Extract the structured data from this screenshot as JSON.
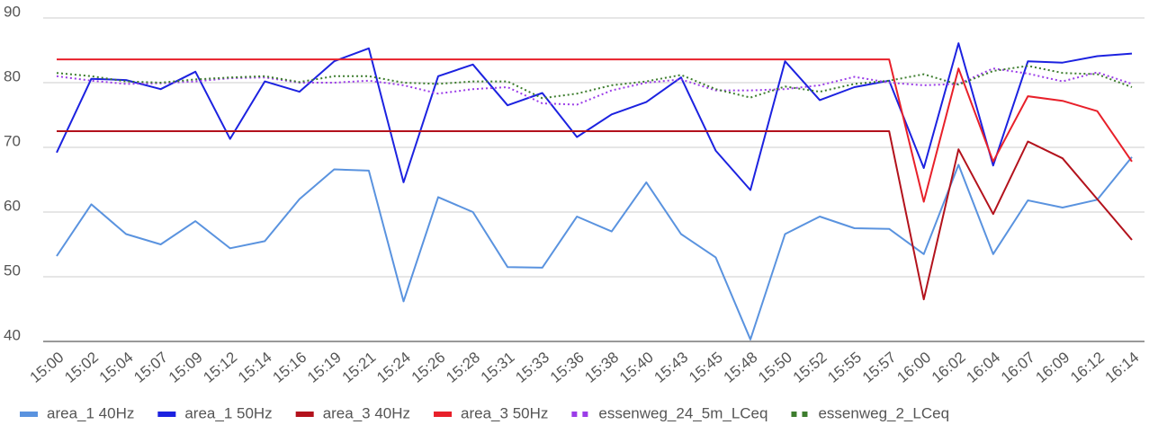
{
  "chart_data": {
    "type": "line",
    "categories": [
      "15:00",
      "15:02",
      "15:04",
      "15:07",
      "15:09",
      "15:12",
      "15:14",
      "15:16",
      "15:19",
      "15:21",
      "15:24",
      "15:26",
      "15:28",
      "15:31",
      "15:33",
      "15:36",
      "15:38",
      "15:40",
      "15:43",
      "15:45",
      "15:48",
      "15:50",
      "15:52",
      "15:55",
      "15:57",
      "16:00",
      "16:02",
      "16:04",
      "16:07",
      "16:09",
      "16:12",
      "16:14"
    ],
    "series": [
      {
        "name": "area_1 40Hz",
        "color": "#5a93df",
        "style": "solid",
        "values": [
          53.2,
          61.2,
          56.6,
          55,
          58.6,
          54.4,
          55.5,
          62,
          66.6,
          66.4,
          46.2,
          62.3,
          60,
          51.5,
          51.4,
          59.3,
          57,
          64.6,
          56.6,
          53,
          40.3,
          56.6,
          59.3,
          57.5,
          57.4,
          53.5,
          67.3,
          53.5,
          61.8,
          60.7,
          61.9,
          68.5
        ]
      },
      {
        "name": "area_1 50Hz",
        "color": "#1c22e0",
        "style": "solid",
        "values": [
          69.2,
          80.6,
          80.4,
          79,
          81.7,
          71.3,
          80.2,
          78.6,
          83.3,
          85.3,
          64.6,
          81,
          82.8,
          76.5,
          78.4,
          71.6,
          75.1,
          77,
          80.8,
          69.5,
          63.4,
          83.3,
          77.3,
          79.3,
          80.3,
          66.8,
          86.1,
          67.2,
          83.3,
          83.1,
          84.1,
          84.5
        ]
      },
      {
        "name": "area_3 40Hz",
        "color": "#b3121c",
        "style": "solid",
        "values": [
          72.5,
          72.5,
          72.5,
          72.5,
          72.5,
          72.5,
          72.5,
          72.5,
          72.5,
          72.5,
          72.5,
          72.5,
          72.5,
          72.5,
          72.5,
          72.5,
          72.5,
          72.5,
          72.5,
          72.5,
          72.5,
          72.5,
          72.5,
          72.5,
          72.5,
          46.5,
          69.7,
          59.7,
          70.9,
          68.3,
          62,
          55.7
        ]
      },
      {
        "name": "area_3 50Hz",
        "color": "#e8202a",
        "style": "solid",
        "values": [
          83.6,
          83.6,
          83.6,
          83.6,
          83.6,
          83.6,
          83.6,
          83.6,
          83.6,
          83.6,
          83.6,
          83.6,
          83.6,
          83.6,
          83.6,
          83.6,
          83.6,
          83.6,
          83.6,
          83.6,
          83.6,
          83.6,
          83.6,
          83.6,
          83.6,
          61.6,
          82.2,
          67.8,
          77.9,
          77.2,
          75.6,
          67.8
        ]
      },
      {
        "name": "essenweg_24_5m_LCeq",
        "color": "#9b3de8",
        "style": "dotted",
        "values": [
          81,
          80.3,
          79.8,
          79.9,
          80.2,
          80.7,
          80.8,
          80,
          80,
          80.3,
          79.6,
          78.3,
          79,
          79.3,
          76.8,
          76.6,
          78.8,
          80,
          80.5,
          78.8,
          78.8,
          79,
          79.6,
          80.9,
          80,
          79.6,
          79.8,
          82.2,
          81.4,
          80.2,
          81.6,
          79.8
        ]
      },
      {
        "name": "essenweg_2_LCeq",
        "color": "#3d7d2e",
        "style": "dotted",
        "values": [
          81.5,
          81,
          80.2,
          80,
          80.5,
          80.8,
          81,
          80.1,
          81,
          81,
          80,
          79.8,
          80.2,
          80.2,
          77.6,
          78.3,
          79.6,
          80.2,
          81.2,
          79,
          77.7,
          79.4,
          78.6,
          79.8,
          80.3,
          81.3,
          79.7,
          81.8,
          82.6,
          81.5,
          81.3,
          79.3
        ]
      }
    ],
    "ylim": [
      40,
      90
    ],
    "yticks": [
      40,
      50,
      60,
      70,
      80,
      90
    ],
    "grid": true,
    "legend": "bottom"
  }
}
